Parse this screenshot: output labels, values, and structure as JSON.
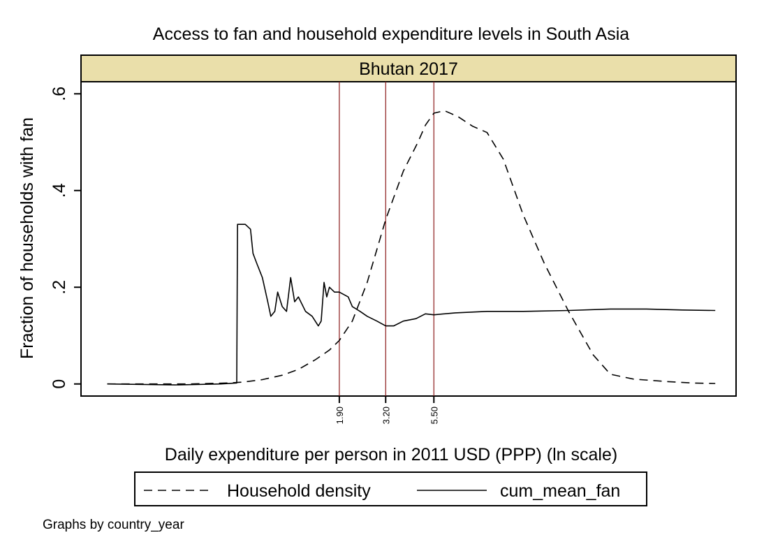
{
  "chart_data": {
    "type": "line",
    "title": "Access to fan and household expenditure levels in South Asia",
    "panel_label": "Bhutan 2017",
    "xlabel": "Daily expenditure per person in 2011 USD (PPP) (ln scale)",
    "ylabel": "Fraction of households with fan",
    "x_scale": "log",
    "x_range": [
      0.12,
      135
    ],
    "ylim": [
      -0.025,
      0.625
    ],
    "y_ticks": [
      0,
      0.2,
      0.4,
      0.6
    ],
    "y_tick_labels": [
      "0",
      ".2",
      ".4",
      ".6"
    ],
    "x_ticks": [
      1.9,
      3.2,
      5.5
    ],
    "x_tick_labels": [
      "1.90",
      "3.20",
      "5.50"
    ],
    "reference_lines_x": [
      1.9,
      3.2,
      5.5
    ],
    "grid": false,
    "legend_position": "bottom",
    "note": "Graphs by country_year",
    "series": [
      {
        "name": "Household density",
        "style": "dashed",
        "points": [
          [
            0.14,
            0
          ],
          [
            0.25,
            0
          ],
          [
            0.35,
            0
          ],
          [
            0.55,
            0.002
          ],
          [
            0.65,
            0.004
          ],
          [
            0.8,
            0.009
          ],
          [
            1.0,
            0.018
          ],
          [
            1.2,
            0.03
          ],
          [
            1.45,
            0.05
          ],
          [
            1.7,
            0.07
          ],
          [
            1.9,
            0.09
          ],
          [
            2.2,
            0.13
          ],
          [
            2.6,
            0.21
          ],
          [
            3.2,
            0.34
          ],
          [
            3.9,
            0.44
          ],
          [
            4.6,
            0.5
          ],
          [
            5.0,
            0.535
          ],
          [
            5.5,
            0.56
          ],
          [
            6.2,
            0.565
          ],
          [
            7.2,
            0.553
          ],
          [
            8.5,
            0.533
          ],
          [
            10,
            0.52
          ],
          [
            12,
            0.465
          ],
          [
            15,
            0.35
          ],
          [
            19,
            0.25
          ],
          [
            25,
            0.15
          ],
          [
            33,
            0.06
          ],
          [
            40,
            0.02
          ],
          [
            52,
            0.01
          ],
          [
            75,
            0.005
          ],
          [
            100,
            0.002
          ],
          [
            130,
            0.001
          ]
        ]
      },
      {
        "name": "cum_mean_fan",
        "style": "solid",
        "points": [
          [
            0.14,
            0
          ],
          [
            0.3,
            -0.002
          ],
          [
            0.5,
            0
          ],
          [
            0.6,
            0.002
          ],
          [
            0.605,
            0.33
          ],
          [
            0.66,
            0.33
          ],
          [
            0.7,
            0.32
          ],
          [
            0.72,
            0.27
          ],
          [
            0.75,
            0.25
          ],
          [
            0.8,
            0.22
          ],
          [
            0.85,
            0.17
          ],
          [
            0.88,
            0.14
          ],
          [
            0.92,
            0.15
          ],
          [
            0.95,
            0.19
          ],
          [
            1.0,
            0.16
          ],
          [
            1.05,
            0.15
          ],
          [
            1.1,
            0.22
          ],
          [
            1.15,
            0.17
          ],
          [
            1.2,
            0.18
          ],
          [
            1.3,
            0.15
          ],
          [
            1.4,
            0.14
          ],
          [
            1.5,
            0.12
          ],
          [
            1.55,
            0.13
          ],
          [
            1.6,
            0.21
          ],
          [
            1.65,
            0.18
          ],
          [
            1.7,
            0.2
          ],
          [
            1.8,
            0.19
          ],
          [
            1.9,
            0.19
          ],
          [
            2.1,
            0.18
          ],
          [
            2.2,
            0.16
          ],
          [
            2.4,
            0.15
          ],
          [
            2.6,
            0.14
          ],
          [
            2.9,
            0.13
          ],
          [
            3.2,
            0.12
          ],
          [
            3.5,
            0.12
          ],
          [
            3.9,
            0.13
          ],
          [
            4.5,
            0.135
          ],
          [
            5.0,
            0.145
          ],
          [
            5.5,
            0.143
          ],
          [
            7,
            0.147
          ],
          [
            10,
            0.15
          ],
          [
            15,
            0.15
          ],
          [
            25,
            0.152
          ],
          [
            40,
            0.155
          ],
          [
            60,
            0.155
          ],
          [
            90,
            0.153
          ],
          [
            130,
            0.152
          ]
        ]
      }
    ],
    "colors": {
      "panel_header_bg": "#eadfaa",
      "reference_line": "#8b1a1a",
      "axis": "#000000",
      "series_line": "#000000"
    }
  }
}
